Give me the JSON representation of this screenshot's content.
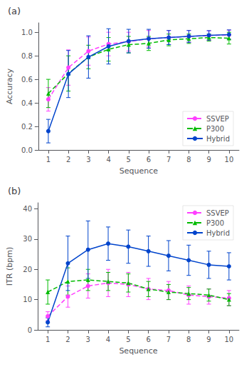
{
  "chart_data": [
    {
      "type": "line",
      "title": "(a)",
      "xlabel": "Sequence",
      "ylabel": "Accuracy",
      "x": [
        1,
        2,
        3,
        4,
        5,
        6,
        7,
        8,
        9,
        10
      ],
      "xlim": [
        0.5,
        10.5
      ],
      "xticks": [
        1,
        2,
        3,
        4,
        5,
        6,
        7,
        8,
        9,
        10
      ],
      "ylim": [
        0,
        1.08
      ],
      "yticks": [
        {
          "value": 0,
          "label": "0.0"
        },
        0.2,
        0.4,
        0.6,
        0.8,
        {
          "value": 1.0,
          "label": "1.0"
        }
      ],
      "grid": false,
      "legend": "lower right",
      "series": [
        {
          "name": "SSVEP",
          "color": "#ff40ff",
          "marker": "circle",
          "line_style": "dashed",
          "values": [
            0.43,
            0.7,
            0.84,
            0.9,
            0.92,
            0.945,
            0.955,
            0.965,
            0.972,
            0.978
          ],
          "errors": [
            0.1,
            0.15,
            0.12,
            0.1,
            0.08,
            0.07,
            0.06,
            0.05,
            0.04,
            0.04
          ]
        },
        {
          "name": "P300",
          "color": "#00bb00",
          "marker": "triangle",
          "line_style": "dashed",
          "values": [
            0.48,
            0.65,
            0.79,
            0.855,
            0.895,
            0.905,
            0.935,
            0.945,
            0.955,
            0.95
          ],
          "errors": [
            0.12,
            0.15,
            0.1,
            0.1,
            0.07,
            0.06,
            0.05,
            0.04,
            0.03,
            0.05
          ]
        },
        {
          "name": "Hybrid",
          "color": "#0044cc",
          "marker": "circle",
          "line_style": "solid",
          "values": [
            0.16,
            0.645,
            0.79,
            0.88,
            0.925,
            0.945,
            0.955,
            0.965,
            0.974,
            0.98
          ],
          "errors": [
            0.1,
            0.2,
            0.18,
            0.15,
            0.1,
            0.08,
            0.06,
            0.05,
            0.04,
            0.04
          ]
        }
      ]
    },
    {
      "type": "line",
      "title": "(b)",
      "xlabel": "Sequence",
      "ylabel": "ITR (bpm)",
      "x": [
        1,
        2,
        3,
        4,
        5,
        6,
        7,
        8,
        9,
        10
      ],
      "xlim": [
        0.5,
        10.5
      ],
      "xticks": [
        1,
        2,
        3,
        4,
        5,
        6,
        7,
        8,
        9,
        10
      ],
      "ylim": [
        0,
        42
      ],
      "yticks": [
        0,
        10,
        20,
        30,
        40
      ],
      "grid": false,
      "legend": "upper right",
      "series": [
        {
          "name": "SSVEP",
          "color": "#ff40ff",
          "marker": "circle",
          "line_style": "dashed",
          "values": [
            4.5,
            11.0,
            14.5,
            15.5,
            15.0,
            13.5,
            13.0,
            11.5,
            11.0,
            10.5
          ],
          "errors": [
            1.5,
            3.5,
            4.0,
            4.5,
            4.0,
            3.5,
            3.0,
            3.0,
            2.5,
            2.5
          ]
        },
        {
          "name": "P300",
          "color": "#00bb00",
          "marker": "triangle",
          "line_style": "dashed",
          "values": [
            12.5,
            16.0,
            16.5,
            16.0,
            15.5,
            13.5,
            12.5,
            12.0,
            11.5,
            10.0
          ],
          "errors": [
            4.0,
            4.5,
            3.5,
            3.0,
            3.0,
            2.5,
            2.5,
            2.0,
            2.0,
            2.0
          ]
        },
        {
          "name": "Hybrid",
          "color": "#0044cc",
          "marker": "circle",
          "line_style": "solid",
          "values": [
            2.5,
            22.0,
            26.5,
            28.5,
            27.5,
            26.0,
            24.5,
            23.0,
            21.5,
            21.0
          ],
          "errors": [
            1.5,
            9.0,
            9.5,
            5.5,
            5.5,
            5.0,
            5.0,
            5.0,
            4.5,
            4.5
          ]
        }
      ]
    }
  ]
}
